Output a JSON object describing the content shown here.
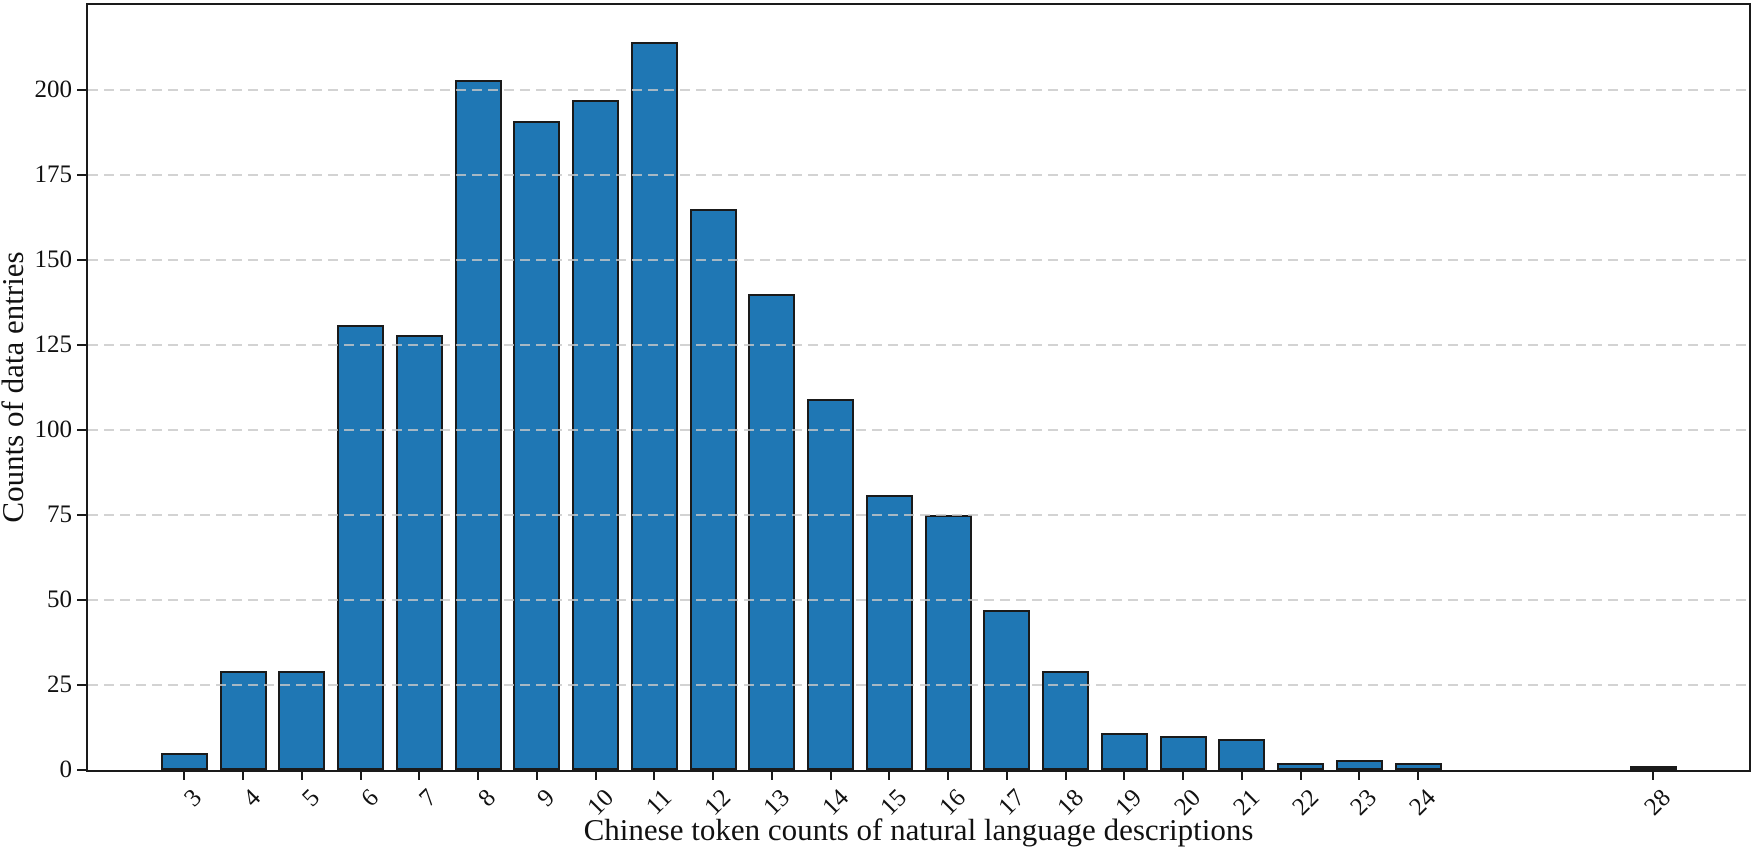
{
  "figure": {
    "xlabel": "Chinese token counts of natural language descriptions",
    "ylabel": "Counts of data entries"
  },
  "chart_data": {
    "type": "bar",
    "title": "",
    "xlabel": "Chinese token counts of natural language descriptions",
    "ylabel": "Counts of data entries",
    "categories": [
      3,
      4,
      5,
      6,
      7,
      8,
      9,
      10,
      11,
      12,
      13,
      14,
      15,
      16,
      17,
      18,
      19,
      20,
      21,
      22,
      23,
      24,
      28
    ],
    "values": [
      5,
      29,
      29,
      131,
      128,
      203,
      191,
      197,
      214,
      165,
      140,
      109,
      81,
      75,
      47,
      29,
      11,
      10,
      9,
      2,
      3,
      2,
      1
    ],
    "yticks": [
      0,
      25,
      50,
      75,
      100,
      125,
      150,
      175,
      200
    ],
    "ylim": [
      0,
      225
    ],
    "xlim": [
      1.4,
      29.7
    ],
    "x_scale": "linear (values 25-27 absent, leaving a gap before 28)",
    "grid": "horizontal dashed gridlines drawn above bars",
    "legend_position": "none",
    "bar_width_units": 0.8,
    "colors": {
      "bar_fill": "#1f77b4",
      "bar_edge": "#1a1a1a",
      "grid": "#cccccc",
      "axis": "#1a1a1a",
      "text": "#111111"
    }
  }
}
